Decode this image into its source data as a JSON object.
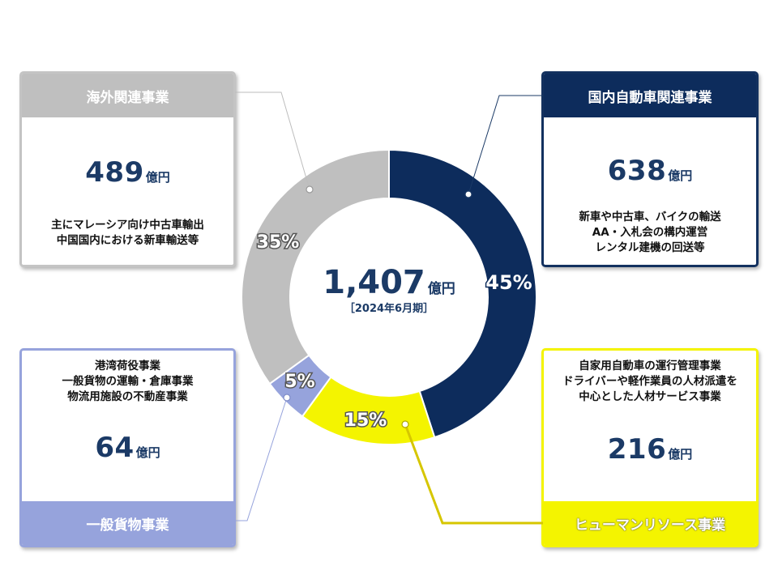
{
  "chart_data": {
    "type": "pie",
    "donut": true,
    "title": "",
    "center_value": "1,407",
    "center_unit": "億円",
    "center_period": "［2024年6月期］",
    "slices": [
      {
        "name": "国内自動車関連事業",
        "percent": 45,
        "value": 638,
        "label": "45%",
        "color": "#0d2c5c"
      },
      {
        "name": "ヒューマンリソース事業",
        "percent": 15,
        "value": 216,
        "label": "15%",
        "color": "#f4f400"
      },
      {
        "name": "一般貨物事業",
        "percent": 5,
        "value": 64,
        "label": "5%",
        "color": "#96a3dc"
      },
      {
        "name": "海外関連事業",
        "percent": 35,
        "value": 489,
        "label": "35%",
        "color": "#bfbfbf"
      }
    ]
  },
  "segments": {
    "overseas": {
      "title": "海外関連事業",
      "amount": "489",
      "unit": "億円",
      "desc": [
        "主にマレーシア向け中古車輸出",
        "中国国内における新車輸送等"
      ]
    },
    "domestic": {
      "title": "国内自動車関連事業",
      "amount": "638",
      "unit": "億円",
      "desc": [
        "新車や中古車、バイクの輸送",
        "AA・入札会の構内運営",
        "レンタル建機の回送等"
      ]
    },
    "cargo": {
      "title": "一般貨物事業",
      "amount": "64",
      "unit": "億円",
      "desc": [
        "港湾荷役事業",
        "一般貨物の運輸・倉庫事業",
        "物流用施設の不動産事業"
      ]
    },
    "human": {
      "title": "ヒューマンリソース事業",
      "amount": "216",
      "unit": "億円",
      "desc": [
        "自家用自動車の運行管理事業",
        "ドライバーや軽作業員の人材派遣を",
        "中心とした人材サービス事業"
      ]
    }
  }
}
